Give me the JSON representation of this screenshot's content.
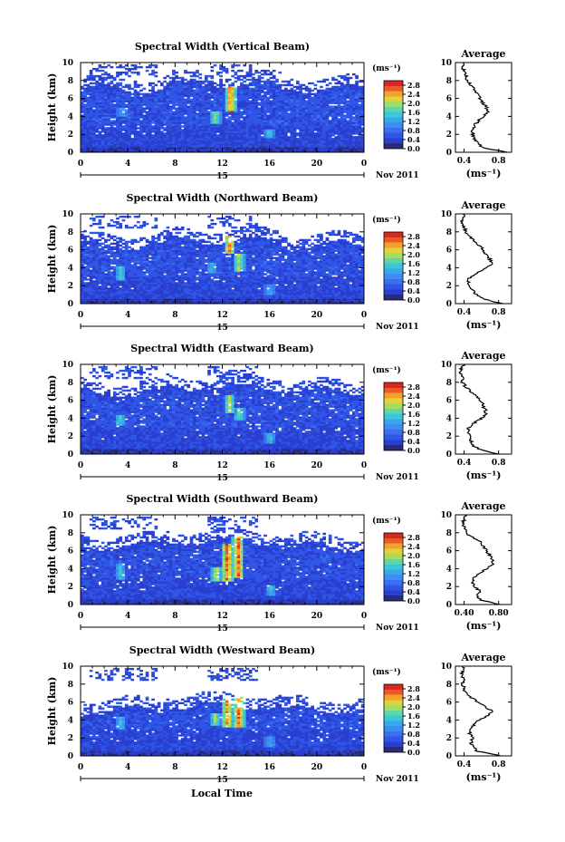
{
  "figure": {
    "xlabel": "Local Time",
    "date_label": "Nov 2011",
    "day_label": "15",
    "ylabel": "Height (km)",
    "cb_unit": "(ms⁻¹)",
    "avg_title": "Average",
    "avg_xlabel": "(ms⁻¹)"
  },
  "colors": {
    "colormap": [
      "#2b2b7a",
      "#2a3fcf",
      "#2f56e6",
      "#3c6ff0",
      "#3f8cf2",
      "#37a9ea",
      "#3cc6d9",
      "#5fd6a6",
      "#a4dc64",
      "#e3d23a",
      "#f2a12c",
      "#ea5a27",
      "#d92722"
    ]
  },
  "chart_data": [
    {
      "type": "heatmap",
      "title": "Spectral Width (Vertical Beam)",
      "x_ticks": [
        "0",
        "4",
        "8",
        "12",
        "16",
        "20",
        "0"
      ],
      "xlim": [
        0,
        24
      ],
      "y_ticks": [
        "0",
        "2",
        "4",
        "6",
        "8",
        "10"
      ],
      "ylim": [
        0,
        10
      ],
      "colorbar_ticks": [
        "0.0",
        "0.4",
        "0.8",
        "1.2",
        "1.6",
        "2.0",
        "2.4",
        "2.8"
      ],
      "colorbar_range": [
        0,
        3.0
      ],
      "cloud_top_km": 7.0,
      "hotspots": [
        {
          "t": 12.6,
          "h0": 4.5,
          "h1": 7.3,
          "v": 2.9
        },
        {
          "t": 11.3,
          "h0": 3.2,
          "h1": 4.6,
          "v": 2.2
        },
        {
          "t": 3.4,
          "h0": 4.0,
          "h1": 5.0,
          "v": 1.5
        },
        {
          "t": 15.9,
          "h0": 1.5,
          "h1": 2.5,
          "v": 1.7
        }
      ],
      "average": {
        "x_ticks": [
          "0.4",
          "0.8"
        ],
        "xlim": [
          0.3,
          0.95
        ],
        "heights": [
          0,
          0.5,
          1,
          1.5,
          2,
          2.5,
          3,
          3.5,
          4,
          4.5,
          5,
          5.5,
          6,
          6.5,
          7,
          7.5,
          8,
          8.5,
          9,
          9.5,
          10
        ],
        "values": [
          0.9,
          0.62,
          0.56,
          0.52,
          0.5,
          0.5,
          0.52,
          0.57,
          0.62,
          0.68,
          0.66,
          0.62,
          0.58,
          0.56,
          0.52,
          0.48,
          0.43,
          0.42,
          0.4,
          0.38,
          0.4
        ]
      }
    },
    {
      "type": "heatmap",
      "title": "Spectral Width (Northward Beam)",
      "x_ticks": [
        "0",
        "4",
        "8",
        "12",
        "16",
        "20",
        "0"
      ],
      "xlim": [
        0,
        24
      ],
      "y_ticks": [
        "0",
        "2",
        "4",
        "6",
        "8",
        "10"
      ],
      "ylim": [
        0,
        10
      ],
      "colorbar_ticks": [
        "0.0",
        "0.4",
        "0.8",
        "1.2",
        "1.6",
        "2.0",
        "2.4",
        "2.8"
      ],
      "colorbar_range": [
        0,
        3.0
      ],
      "cloud_top_km": 6.4,
      "hotspots": [
        {
          "t": 12.5,
          "h0": 5.5,
          "h1": 7.5,
          "v": 2.9
        },
        {
          "t": 13.3,
          "h0": 3.6,
          "h1": 5.6,
          "v": 2.3
        },
        {
          "t": 3.3,
          "h0": 2.5,
          "h1": 4.2,
          "v": 1.9
        },
        {
          "t": 11.0,
          "h0": 3.4,
          "h1": 4.6,
          "v": 1.6
        },
        {
          "t": 15.9,
          "h0": 1.0,
          "h1": 2.0,
          "v": 1.5
        }
      ],
      "average": {
        "x_ticks": [
          "0.4",
          "0.8"
        ],
        "xlim": [
          0.3,
          0.95
        ],
        "heights": [
          0,
          0.5,
          1,
          1.5,
          2,
          2.5,
          3,
          3.5,
          4,
          4.5,
          5,
          5.5,
          6,
          6.5,
          7,
          7.5,
          8,
          8.5,
          9,
          9.5,
          10
        ],
        "values": [
          0.85,
          0.62,
          0.55,
          0.5,
          0.46,
          0.45,
          0.47,
          0.56,
          0.66,
          0.72,
          0.7,
          0.66,
          0.62,
          0.58,
          0.52,
          0.46,
          0.42,
          0.4,
          0.37,
          0.38,
          0.4
        ]
      }
    },
    {
      "type": "heatmap",
      "title": "Spectral Width (Eastward Beam)",
      "x_ticks": [
        "0",
        "4",
        "8",
        "12",
        "16",
        "20",
        "0"
      ],
      "xlim": [
        0,
        24
      ],
      "y_ticks": [
        "0",
        "2",
        "4",
        "6",
        "8",
        "10"
      ],
      "ylim": [
        0,
        10
      ],
      "colorbar_ticks": [
        "0.0",
        "0.4",
        "0.8",
        "1.2",
        "1.6",
        "2.0",
        "2.4",
        "2.8"
      ],
      "colorbar_range": [
        0,
        3.0
      ],
      "cloud_top_km": 6.8,
      "hotspots": [
        {
          "t": 12.5,
          "h0": 4.6,
          "h1": 6.6,
          "v": 2.3
        },
        {
          "t": 13.3,
          "h0": 3.8,
          "h1": 5.2,
          "v": 2.0
        },
        {
          "t": 3.2,
          "h0": 3.2,
          "h1": 4.4,
          "v": 1.8
        },
        {
          "t": 15.9,
          "h0": 1.2,
          "h1": 2.2,
          "v": 1.6
        }
      ],
      "average": {
        "x_ticks": [
          "0.4",
          "0.8"
        ],
        "xlim": [
          0.3,
          0.95
        ],
        "heights": [
          0,
          0.5,
          1,
          1.5,
          2,
          2.5,
          3,
          3.5,
          4,
          4.5,
          5,
          5.5,
          6,
          6.5,
          7,
          7.5,
          8,
          8.5,
          9,
          9.5,
          10
        ],
        "values": [
          0.8,
          0.58,
          0.5,
          0.48,
          0.46,
          0.44,
          0.46,
          0.52,
          0.6,
          0.66,
          0.64,
          0.62,
          0.58,
          0.54,
          0.48,
          0.42,
          0.38,
          0.4,
          0.36,
          0.37,
          0.4
        ]
      }
    },
    {
      "type": "heatmap",
      "title": "Spectral Width (Southward Beam)",
      "x_ticks": [
        "0",
        "4",
        "8",
        "12",
        "16",
        "20",
        "0"
      ],
      "xlim": [
        0,
        24
      ],
      "y_ticks": [
        "0",
        "2",
        "4",
        "6",
        "8",
        "10"
      ],
      "ylim": [
        0,
        10
      ],
      "colorbar_ticks": [
        "0.0",
        "0.4",
        "0.8",
        "1.2",
        "1.6",
        "2.0",
        "2.4",
        "2.8"
      ],
      "colorbar_range": [
        0,
        3.0
      ],
      "cloud_top_km": 6.4,
      "hotspots": [
        {
          "t": 12.3,
          "h0": 2.5,
          "h1": 6.8,
          "v": 3.0
        },
        {
          "t": 13.2,
          "h0": 3.0,
          "h1": 7.6,
          "v": 3.0
        },
        {
          "t": 11.4,
          "h0": 2.6,
          "h1": 4.2,
          "v": 2.4
        },
        {
          "t": 3.3,
          "h0": 2.8,
          "h1": 4.6,
          "v": 1.7
        },
        {
          "t": 16.0,
          "h0": 1.0,
          "h1": 2.0,
          "v": 1.6
        }
      ],
      "average": {
        "x_ticks": [
          "0.40",
          "0.80"
        ],
        "xlim": [
          0.3,
          0.95
        ],
        "heights": [
          0,
          0.5,
          1,
          1.5,
          2,
          2.5,
          3,
          3.5,
          4,
          4.5,
          5,
          5.5,
          6,
          6.5,
          7,
          7.5,
          8,
          8.5,
          9,
          9.5,
          10
        ],
        "values": [
          0.82,
          0.6,
          0.54,
          0.58,
          0.52,
          0.5,
          0.52,
          0.58,
          0.66,
          0.74,
          0.72,
          0.7,
          0.66,
          0.62,
          0.58,
          0.5,
          0.42,
          0.4,
          0.38,
          0.4,
          0.41
        ]
      }
    },
    {
      "type": "heatmap",
      "title": "Spectral Width (Westward Beam)",
      "x_ticks": [
        "0",
        "4",
        "8",
        "12",
        "16",
        "20",
        "0"
      ],
      "xlim": [
        0,
        24
      ],
      "y_ticks": [
        "0",
        "2",
        "4",
        "6",
        "8",
        "10"
      ],
      "ylim": [
        0,
        10
      ],
      "colorbar_ticks": [
        "0.0",
        "0.4",
        "0.8",
        "1.2",
        "1.6",
        "2.0",
        "2.4",
        "2.8"
      ],
      "colorbar_range": [
        0,
        3.0
      ],
      "cloud_top_km": 5.0,
      "hotspots": [
        {
          "t": 12.3,
          "h0": 3.2,
          "h1": 6.6,
          "v": 2.9
        },
        {
          "t": 13.3,
          "h0": 3.2,
          "h1": 7.0,
          "v": 3.0
        },
        {
          "t": 11.3,
          "h0": 3.4,
          "h1": 4.8,
          "v": 2.2
        },
        {
          "t": 3.3,
          "h0": 3.0,
          "h1": 4.4,
          "v": 1.6
        },
        {
          "t": 15.9,
          "h0": 1.0,
          "h1": 2.0,
          "v": 1.5
        }
      ],
      "average": {
        "x_ticks": [
          "0.4",
          "0.8"
        ],
        "xlim": [
          0.3,
          0.95
        ],
        "heights": [
          0,
          0.5,
          1,
          1.5,
          2,
          2.5,
          3,
          3.5,
          4,
          4.5,
          5,
          5.5,
          6,
          6.5,
          7,
          7.5,
          8,
          8.5,
          9,
          9.5,
          10
        ],
        "values": [
          0.82,
          0.56,
          0.5,
          0.48,
          0.5,
          0.46,
          0.48,
          0.52,
          0.58,
          0.68,
          0.72,
          0.64,
          0.56,
          0.48,
          0.42,
          0.4,
          0.38,
          0.4,
          0.37,
          0.39,
          0.4
        ]
      }
    }
  ]
}
